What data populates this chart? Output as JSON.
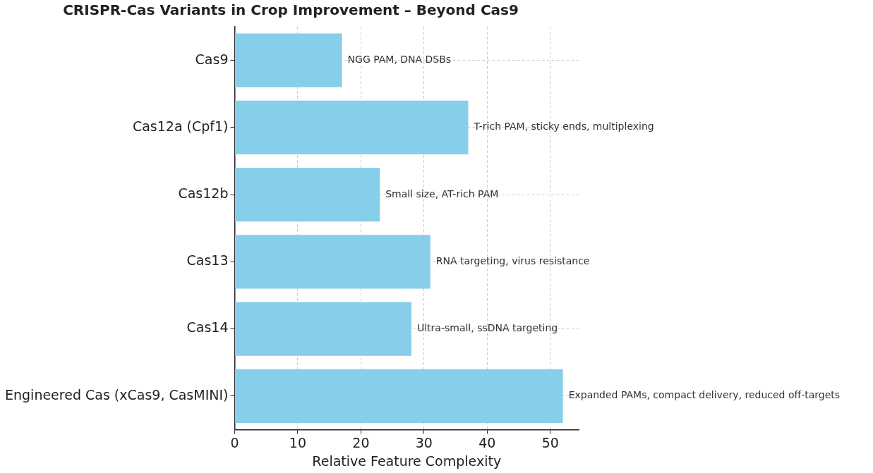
{
  "chart_data": {
    "type": "bar",
    "orientation": "horizontal",
    "title": "CRISPR-Cas Variants in Crop Improvement – Beyond Cas9",
    "xlabel": "Relative Feature Complexity",
    "categories": [
      "Cas9",
      "Cas12a (Cpf1)",
      "Cas12b",
      "Cas13",
      "Cas14",
      "Engineered Cas (xCas9, CasMINI)"
    ],
    "values": [
      17,
      37,
      23,
      31,
      28,
      52
    ],
    "color": "#87ceeb",
    "xlim": [
      0,
      54.5
    ],
    "xticks": [
      0,
      10,
      20,
      30,
      40,
      50
    ],
    "grid": true,
    "annotations": [
      {
        "text": "NGG PAM, DNA DSBs",
        "x": 17,
        "y": "Cas9"
      },
      {
        "text": "T-rich PAM, sticky ends, multiplexing",
        "x": 37,
        "y": "Cas12a (Cpf1)"
      },
      {
        "text": "Small size, AT-rich PAM",
        "x": 23,
        "y": "Cas12b"
      },
      {
        "text": "RNA targeting, virus resistance",
        "x": 31,
        "y": "Cas13"
      },
      {
        "text": "Ultra-small, ssDNA targeting",
        "x": 28,
        "y": "Cas14"
      },
      {
        "text": "Expanded PAMs, compact delivery, reduced off-targets",
        "x": 52,
        "y": "Engineered Cas (xCas9, CasMINI)"
      }
    ]
  }
}
